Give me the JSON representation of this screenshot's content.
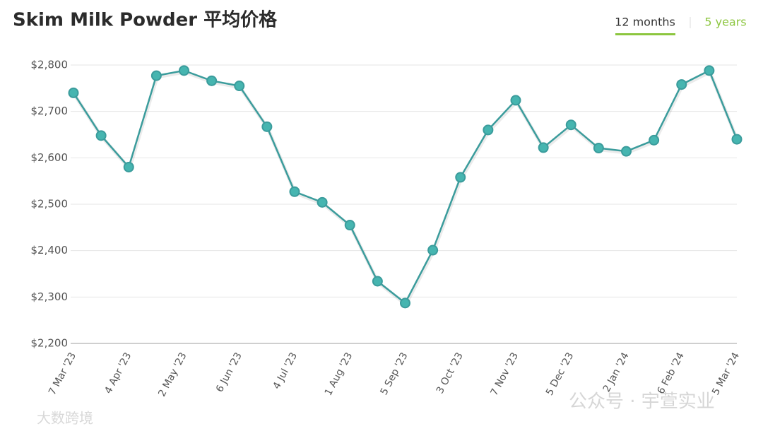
{
  "chart_data": {
    "type": "line",
    "title": "Skim Milk Powder 平均价格",
    "categories": [
      "7 Mar '23",
      null,
      "4 Apr '23",
      null,
      "2 May '23",
      null,
      "6 Jun '23",
      null,
      "4 Jul '23",
      null,
      "1 Aug '23",
      null,
      "5 Sep '23",
      null,
      "3 Oct '23",
      null,
      "7 Nov '23",
      null,
      "5 Dec '23",
      null,
      "2 Jan '24",
      null,
      "6 Feb '24",
      null,
      "5 Mar '24"
    ],
    "series": [
      {
        "name": "Skim Milk Powder",
        "color": "#3b9c9c",
        "values": [
          2740,
          2648,
          2580,
          2777,
          2788,
          2766,
          2755,
          2667,
          2527,
          2504,
          2455,
          2334,
          2287,
          2401,
          2558,
          2660,
          2724,
          2622,
          2671,
          2621,
          2614,
          2638,
          2758,
          2788,
          2640
        ]
      }
    ],
    "ylim": [
      2200,
      2800
    ],
    "yticks": [
      {
        "value": 2200,
        "label": "$2,200"
      },
      {
        "value": 2300,
        "label": "$2,300"
      },
      {
        "value": 2400,
        "label": "$2,400"
      },
      {
        "value": 2500,
        "label": "$2,500"
      },
      {
        "value": 2600,
        "label": "$2,600"
      },
      {
        "value": 2700,
        "label": "$2,700"
      },
      {
        "value": 2800,
        "label": "$2,800"
      }
    ],
    "grid": true
  },
  "tabs": [
    "12 months",
    "5 years"
  ],
  "watermarks": [
    "公众号 · 宇萱实业",
    "大数跨境"
  ]
}
